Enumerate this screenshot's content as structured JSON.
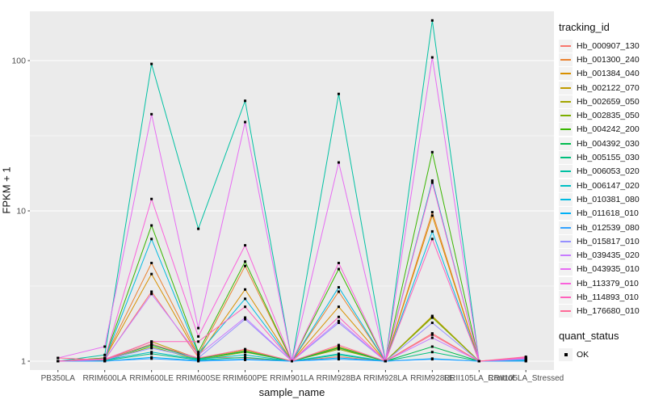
{
  "chart_data": {
    "type": "line",
    "title": "",
    "xlabel": "sample_name",
    "ylabel": "FPKM + 1",
    "y_scale": "log10",
    "y_ticks": [
      1,
      10,
      100
    ],
    "ylim": [
      0.88,
      230
    ],
    "grid": "major-white-minor-white-on-gray-panel",
    "panel_bg": "#EBEBEB",
    "grid_color": "#FFFFFF",
    "point_color": "#000000",
    "point_shape": "square",
    "tick_label_color": "#4D4D4D",
    "legend_position": "right",
    "legend_title": "tracking_id",
    "quant_legend": {
      "title": "quant_status",
      "items": [
        "OK"
      ]
    },
    "categories": [
      "PB350LA",
      "RRIM600LA",
      "RRIM600LE",
      "RRIM600SE",
      "RRIM600PE",
      "RRIM901LA",
      "RRIM928BA",
      "RRIM928LA",
      "RRIM928LE",
      "RRII105LA_Control",
      "RRII105LA_Stressed"
    ],
    "series": [
      {
        "name": "Hb_000907_130",
        "color": "#F8766D",
        "values": [
          1.0,
          1.02,
          2.9,
          1.06,
          1.05,
          1.0,
          1.07,
          1.0,
          1.53,
          1.0,
          1.02
        ]
      },
      {
        "name": "Hb_001300_240",
        "color": "#EA8331",
        "values": [
          1.0,
          1.05,
          4.5,
          1.1,
          4.3,
          1.0,
          2.9,
          1.0,
          9.8,
          1.0,
          1.02
        ]
      },
      {
        "name": "Hb_001384_040",
        "color": "#D89000",
        "values": [
          1.0,
          1.04,
          3.8,
          1.08,
          3.0,
          1.0,
          2.3,
          1.0,
          9.3,
          1.0,
          1.02
        ]
      },
      {
        "name": "Hb_002122_070",
        "color": "#C09B00",
        "values": [
          1.0,
          1.02,
          1.35,
          1.04,
          1.2,
          1.0,
          1.25,
          1.0,
          2.0,
          1.0,
          1.02
        ]
      },
      {
        "name": "Hb_002659_050",
        "color": "#A3A500",
        "values": [
          1.0,
          1.02,
          1.3,
          1.03,
          1.18,
          1.0,
          1.22,
          1.0,
          1.97,
          1.0,
          1.05
        ]
      },
      {
        "name": "Hb_002835_050",
        "color": "#7CAE00",
        "values": [
          1.0,
          1.01,
          1.25,
          1.02,
          1.15,
          1.0,
          1.2,
          1.0,
          1.95,
          1.0,
          1.04
        ]
      },
      {
        "name": "Hb_004242_200",
        "color": "#39B600",
        "values": [
          1.0,
          1.05,
          8.0,
          1.15,
          4.6,
          1.0,
          4.1,
          1.0,
          24.6,
          1.0,
          1.03
        ]
      },
      {
        "name": "Hb_004392_030",
        "color": "#00BB4E",
        "values": [
          1.0,
          1.02,
          1.28,
          1.04,
          1.16,
          1.0,
          1.23,
          1.0,
          1.25,
          1.0,
          1.02
        ]
      },
      {
        "name": "Hb_005155_030",
        "color": "#00BF7D",
        "values": [
          1.0,
          1.01,
          1.12,
          1.02,
          1.06,
          1.0,
          1.1,
          1.0,
          1.15,
          1.0,
          1.01
        ]
      },
      {
        "name": "Hb_006053_020",
        "color": "#00C1A3",
        "values": [
          1.0,
          1.1,
          95,
          7.6,
          54,
          1.0,
          60,
          1.0,
          185,
          1.0,
          1.02
        ]
      },
      {
        "name": "Hb_006147_020",
        "color": "#00BFC4",
        "values": [
          1.0,
          1.02,
          1.15,
          1.03,
          1.1,
          1.0,
          1.12,
          1.0,
          15.9,
          1.0,
          1.01
        ]
      },
      {
        "name": "Hb_010381_080",
        "color": "#00BAE0",
        "values": [
          1.0,
          1.03,
          6.5,
          1.12,
          2.6,
          1.0,
          3.1,
          1.0,
          7.3,
          1.0,
          1.02
        ]
      },
      {
        "name": "Hb_011618_010",
        "color": "#00B0F6",
        "values": [
          1.0,
          1.0,
          1.06,
          1.01,
          1.03,
          1.0,
          1.05,
          1.0,
          1.04,
          1.0,
          1.0
        ]
      },
      {
        "name": "Hb_012539_080",
        "color": "#35A2FF",
        "values": [
          1.0,
          1.0,
          1.04,
          1.0,
          1.02,
          1.0,
          1.03,
          1.0,
          1.03,
          1.0,
          1.0
        ]
      },
      {
        "name": "Hb_015817_010",
        "color": "#9590FF",
        "values": [
          1.0,
          1.02,
          1.22,
          1.05,
          1.9,
          1.0,
          1.8,
          1.0,
          1.8,
          1.0,
          1.03
        ]
      },
      {
        "name": "Hb_039435_020",
        "color": "#C77CFF",
        "values": [
          1.0,
          1.03,
          2.8,
          1.1,
          1.95,
          1.0,
          1.85,
          1.0,
          1.43,
          1.0,
          1.04
        ]
      },
      {
        "name": "Hb_043935_010",
        "color": "#E76BF3",
        "values": [
          1.05,
          1.25,
          44,
          1.66,
          39,
          1.0,
          21,
          1.0,
          105,
          1.0,
          1.05
        ]
      },
      {
        "name": "Hb_113379_010",
        "color": "#FA62DB",
        "values": [
          1.0,
          1.04,
          12,
          1.46,
          5.9,
          1.0,
          4.5,
          1.0,
          15.4,
          1.0,
          1.06
        ]
      },
      {
        "name": "Hb_114893_010",
        "color": "#FF62BC",
        "values": [
          1.0,
          1.03,
          1.35,
          1.35,
          2.3,
          1.0,
          1.97,
          1.0,
          6.5,
          1.0,
          1.05
        ]
      },
      {
        "name": "Hb_176680_010",
        "color": "#FF6A98",
        "values": [
          1.05,
          1.02,
          1.3,
          1.05,
          1.2,
          1.0,
          1.28,
          1.0,
          1.5,
          1.0,
          1.07
        ]
      }
    ]
  }
}
